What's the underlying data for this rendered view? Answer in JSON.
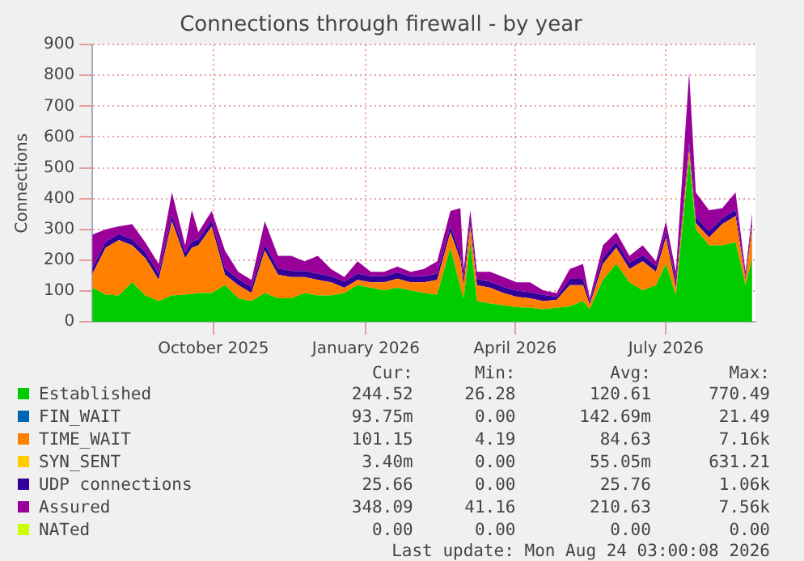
{
  "chart_data": {
    "type": "area",
    "title": "Connections through firewall - by year",
    "ylabel": "Connections",
    "stacked": true,
    "grid": true,
    "marker": "none",
    "legend": "bottom",
    "x": [
      "2025-07-20",
      "2025-07-28",
      "2025-08-05",
      "2025-08-13",
      "2025-08-21",
      "2025-08-29",
      "2025-09-06",
      "2025-09-14",
      "2025-09-18",
      "2025-09-22",
      "2025-09-30",
      "2025-10-08",
      "2025-10-16",
      "2025-10-24",
      "2025-11-01",
      "2025-11-09",
      "2025-11-17",
      "2025-11-25",
      "2025-12-03",
      "2025-12-11",
      "2025-12-19",
      "2025-12-27",
      "2026-01-04",
      "2026-01-12",
      "2026-01-20",
      "2026-01-28",
      "2026-02-05",
      "2026-02-13",
      "2026-02-21",
      "2026-02-27",
      "2026-03-01",
      "2026-03-05",
      "2026-03-09",
      "2026-03-17",
      "2026-03-25",
      "2026-04-02",
      "2026-04-10",
      "2026-04-18",
      "2026-04-26",
      "2026-05-04",
      "2026-05-12",
      "2026-05-16",
      "2026-05-24",
      "2026-06-01",
      "2026-06-09",
      "2026-06-17",
      "2026-06-25",
      "2026-07-01",
      "2026-07-07",
      "2026-07-15",
      "2026-07-19",
      "2026-07-27",
      "2026-08-04",
      "2026-08-12",
      "2026-08-18",
      "2026-08-22"
    ],
    "series": [
      {
        "name": "Established",
        "color": "#00cc00",
        "values": [
          110,
          88,
          85,
          128,
          85,
          67,
          85,
          88,
          90,
          93,
          93,
          119,
          76,
          67,
          93,
          76,
          76,
          93,
          85,
          85,
          93,
          119,
          110,
          102,
          110,
          102,
          93,
          88,
          240,
          110,
          76,
          258,
          67,
          59,
          53,
          47,
          45,
          41,
          45,
          50,
          67,
          41,
          136,
          188,
          128,
          102,
          119,
          188,
          85,
          530,
          300,
          248,
          248,
          258,
          119,
          205
        ]
      },
      {
        "name": "FIN_WAIT",
        "color": "#0066b3",
        "values": [
          null,
          null,
          null,
          null,
          null,
          null,
          null,
          null,
          null,
          null,
          null,
          null,
          null,
          null,
          null,
          null,
          null,
          null,
          null,
          null,
          null,
          null,
          null,
          null,
          null,
          null,
          null,
          null,
          null,
          null,
          null,
          null,
          null,
          null,
          null,
          null,
          null,
          null,
          null,
          null,
          null,
          null,
          null,
          null,
          null,
          null,
          null,
          null,
          null,
          null,
          null,
          null,
          null,
          null,
          null,
          null
        ]
      },
      {
        "name": "TIME_WAIT",
        "color": "#ff8000",
        "values": [
          45,
          152,
          180,
          120,
          121,
          69,
          241,
          118,
          150,
          155,
          216,
          34,
          43,
          26,
          138,
          77,
          69,
          52,
          51,
          43,
          17,
          17,
          18,
          26,
          30,
          26,
          35,
          48,
          51,
          90,
          43,
          51,
          52,
          51,
          40,
          34,
          31,
          26,
          26,
          69,
          52,
          14,
          52,
          52,
          43,
          94,
          43,
          86,
          25,
          30,
          20,
          26,
          69,
          85,
          17,
          104
        ]
      },
      {
        "name": "SYN_SENT",
        "color": "#ffcc00",
        "values": [
          null,
          null,
          null,
          null,
          null,
          null,
          null,
          null,
          null,
          null,
          null,
          null,
          null,
          null,
          null,
          null,
          null,
          null,
          null,
          null,
          null,
          null,
          null,
          null,
          null,
          null,
          null,
          null,
          null,
          null,
          null,
          null,
          null,
          null,
          null,
          null,
          null,
          null,
          null,
          null,
          null,
          null,
          null,
          null,
          null,
          null,
          null,
          null,
          null,
          null,
          null,
          null,
          null,
          null,
          null,
          null
        ]
      },
      {
        "name": "UDP connections",
        "color": "#330099",
        "values": [
          20,
          20,
          20,
          20,
          20,
          20,
          20,
          20,
          20,
          20,
          20,
          20,
          20,
          20,
          20,
          20,
          20,
          20,
          20,
          20,
          20,
          20,
          20,
          20,
          20,
          20,
          20,
          20,
          20,
          20,
          20,
          20,
          20,
          20,
          20,
          20,
          20,
          20,
          10,
          20,
          20,
          10,
          20,
          20,
          20,
          20,
          20,
          20,
          20,
          20,
          20,
          20,
          20,
          20,
          10,
          20
        ]
      },
      {
        "name": "Assured",
        "color": "#990099",
        "values": [
          108,
          40,
          25,
          49,
          31,
          32,
          74,
          22,
          102,
          23,
          31,
          58,
          23,
          23,
          75,
          41,
          49,
          31,
          58,
          23,
          15,
          40,
          14,
          14,
          19,
          14,
          23,
          40,
          49,
          149,
          32,
          33,
          23,
          32,
          32,
          27,
          32,
          15,
          12,
          32,
          49,
          11,
          40,
          31,
          23,
          32,
          14,
          32,
          32,
          230,
          80,
          68,
          32,
          57,
          16,
          23
        ]
      },
      {
        "name": "NATed",
        "color": "#ccff00",
        "values": [
          null,
          null,
          null,
          null,
          null,
          null,
          null,
          null,
          null,
          null,
          null,
          null,
          null,
          null,
          null,
          null,
          null,
          null,
          null,
          null,
          null,
          null,
          null,
          null,
          null,
          null,
          null,
          null,
          null,
          null,
          null,
          null,
          null,
          null,
          null,
          null,
          null,
          null,
          null,
          null,
          null,
          null,
          null,
          null,
          null,
          null,
          null,
          null,
          null,
          null,
          null,
          null,
          null,
          null,
          null,
          null
        ]
      }
    ],
    "xlim": [
      "2025-07-20",
      "2026-08-24"
    ],
    "xticks": [
      {
        "value": "2025-10-01",
        "label": "October 2025"
      },
      {
        "value": "2026-01-01",
        "label": "January 2026"
      },
      {
        "value": "2026-04-01",
        "label": "April 2026"
      },
      {
        "value": "2026-07-01",
        "label": "July 2026"
      }
    ],
    "ylim": [
      0,
      900
    ],
    "yticks": [
      0,
      100,
      200,
      300,
      400,
      500,
      600,
      700,
      800,
      900
    ],
    "annotations": [
      "Cur:",
      "Min:",
      "Avg:",
      "Max:",
      "244.52",
      "26.28",
      "120.61",
      "770.49",
      "93.75m",
      "0.00",
      "142.69m",
      "21.49",
      "101.15",
      "4.19",
      "84.63",
      "7.16k",
      "3.40m",
      "0.00",
      "55.05m",
      "631.21",
      "25.66",
      "0.00",
      "25.76",
      "1.06k",
      "348.09",
      "41.16",
      "210.63",
      "7.56k",
      "0.00",
      "0.00",
      "0.00",
      "0.00",
      "Last update: Mon Aug 24 03:00:08 2026"
    ]
  }
}
